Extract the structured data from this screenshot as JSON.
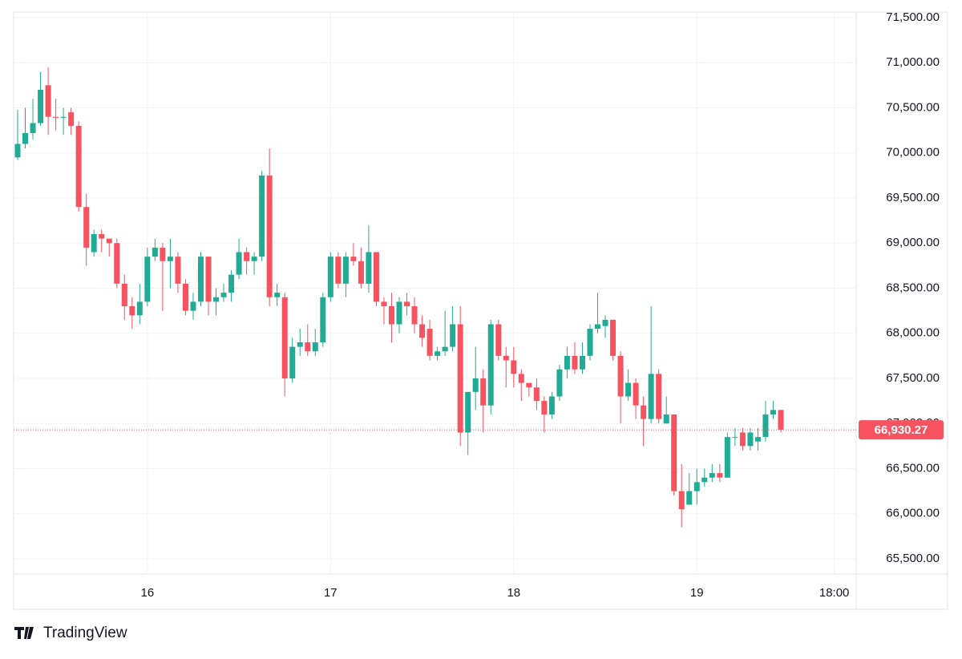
{
  "chart_data": {
    "type": "candlestick",
    "branding": "TradingView",
    "categories": [
      null,
      null,
      null,
      null,
      null,
      null,
      null,
      null,
      null,
      null,
      null,
      null,
      null,
      null,
      null,
      null,
      null,
      "16",
      null,
      null,
      null,
      null,
      null,
      null,
      null,
      null,
      null,
      null,
      null,
      null,
      null,
      null,
      null,
      null,
      null,
      null,
      null,
      null,
      null,
      null,
      null,
      "17",
      null,
      null,
      null,
      null,
      null,
      null,
      null,
      null,
      null,
      null,
      null,
      null,
      null,
      null,
      null,
      null,
      null,
      null,
      null,
      null,
      null,
      null,
      null,
      "18",
      null,
      null,
      null,
      null,
      null,
      null,
      null,
      null,
      null,
      null,
      null,
      null,
      null,
      null,
      null,
      null,
      null,
      null,
      null,
      null,
      null,
      null,
      null,
      "19",
      null,
      null,
      null,
      null,
      null,
      null,
      null,
      null,
      null,
      null,
      null,
      null,
      null,
      null,
      null,
      null,
      null,
      "18:00"
    ],
    "open": [
      69950,
      70100,
      70220,
      70330,
      70750,
      70400,
      70390,
      70450,
      70300,
      69400,
      68900,
      69100,
      69050,
      69000,
      68550,
      68300,
      68200,
      68350,
      68850,
      68950,
      68800,
      68850,
      68550,
      68250,
      68350,
      68850,
      68350,
      68400,
      68450,
      68650,
      68900,
      68800,
      68850,
      69750,
      68400,
      68400,
      67500,
      67850,
      67900,
      67800,
      67900,
      68400,
      68850,
      68550,
      68850,
      68800,
      68550,
      68900,
      68350,
      68300,
      68100,
      68350,
      68300,
      68100,
      68050,
      67750,
      67800,
      67850,
      68100,
      66900,
      67350,
      67500,
      67200,
      68100,
      67750,
      67700,
      67550,
      67450,
      67400,
      67250,
      67100,
      67300,
      67600,
      67750,
      67600,
      67750,
      68050,
      68080,
      68150,
      67750,
      67300,
      67450,
      67200,
      67050,
      67550,
      67000,
      67100,
      66250,
      66100,
      66250,
      66350,
      66400,
      66450,
      66400,
      66850,
      66900,
      66750,
      66800,
      66850,
      67100,
      67150,
      null,
      null,
      null,
      null,
      null,
      null,
      null
    ],
    "high": [
      70480,
      70500,
      70600,
      70900,
      70950,
      70600,
      70500,
      70500,
      70350,
      69550,
      69150,
      69150,
      69050,
      69050,
      68650,
      68400,
      68550,
      68950,
      69050,
      69000,
      69050,
      68900,
      68600,
      68450,
      68900,
      68850,
      68500,
      68550,
      68700,
      69050,
      68950,
      68900,
      69800,
      70050,
      68550,
      68450,
      67950,
      68050,
      68100,
      68050,
      68450,
      68900,
      68900,
      68900,
      69000,
      68950,
      69200,
      68900,
      68400,
      68450,
      68400,
      68450,
      68400,
      68200,
      68150,
      67850,
      68250,
      68300,
      68300,
      67350,
      67850,
      67600,
      68150,
      68150,
      67850,
      67850,
      67600,
      67450,
      67500,
      67300,
      67350,
      67650,
      67850,
      67900,
      67900,
      68100,
      68450,
      68200,
      68150,
      67800,
      67600,
      67500,
      67300,
      68300,
      67600,
      67300,
      67100,
      66550,
      66450,
      66500,
      66500,
      66550,
      66550,
      66900,
      66950,
      66950,
      66950,
      66950,
      67250,
      67250,
      67150,
      null,
      null,
      null,
      null,
      null,
      null,
      null
    ],
    "low": [
      69920,
      70050,
      70150,
      70300,
      70200,
      70250,
      70200,
      70200,
      69350,
      68750,
      68850,
      68900,
      68850,
      68500,
      68150,
      68050,
      68100,
      68300,
      68800,
      68250,
      68500,
      68450,
      68200,
      68150,
      68300,
      68200,
      68200,
      68350,
      68350,
      68600,
      68650,
      68650,
      68800,
      68300,
      68300,
      67300,
      67450,
      67750,
      67750,
      67750,
      67850,
      68350,
      68500,
      68400,
      68750,
      68500,
      68450,
      68300,
      68100,
      67900,
      68000,
      68200,
      68000,
      67850,
      67700,
      67700,
      67750,
      67800,
      66750,
      66650,
      67150,
      66900,
      67100,
      67700,
      67400,
      67400,
      67250,
      67300,
      67150,
      66900,
      67050,
      67250,
      67500,
      67550,
      67550,
      67700,
      68000,
      67950,
      67700,
      67000,
      67250,
      67050,
      66750,
      67000,
      67000,
      67000,
      66200,
      65850,
      66100,
      66100,
      66300,
      66350,
      66350,
      66400,
      66750,
      66700,
      66700,
      66700,
      66800,
      67050,
      66900,
      null,
      null,
      null,
      null,
      null,
      null,
      null
    ],
    "close": [
      70100,
      70220,
      70330,
      70700,
      70400,
      70390,
      70400,
      70300,
      69400,
      68950,
      69100,
      69050,
      69000,
      68550,
      68300,
      68200,
      68350,
      68850,
      68950,
      68800,
      68850,
      68550,
      68250,
      68350,
      68850,
      68350,
      68400,
      68450,
      68650,
      68900,
      68800,
      68850,
      69750,
      68400,
      68450,
      67500,
      67850,
      67900,
      67800,
      67900,
      68400,
      68850,
      68550,
      68850,
      68800,
      68550,
      68900,
      68350,
      68300,
      68100,
      68350,
      68300,
      68100,
      67950,
      67750,
      67800,
      67850,
      68100,
      66900,
      67350,
      67500,
      67200,
      68100,
      67750,
      67700,
      67550,
      67450,
      67400,
      67250,
      67100,
      67300,
      67600,
      67750,
      67600,
      67750,
      68050,
      68100,
      68150,
      67750,
      67300,
      67450,
      67200,
      67050,
      67550,
      67050,
      67100,
      66250,
      66050,
      66250,
      66350,
      66400,
      66450,
      66400,
      66850,
      66850,
      66750,
      66900,
      66850,
      67100,
      67150,
      66930.27,
      null,
      null,
      null,
      null,
      null,
      null,
      null
    ],
    "up_color": "#22ab94",
    "down_color": "#f7525f",
    "ylim": [
      65331,
      71562
    ],
    "yticks": [
      {
        "value": 65500,
        "label": "65,500.00"
      },
      {
        "value": 66000,
        "label": "66,000.00"
      },
      {
        "value": 66500,
        "label": "66,500.00"
      },
      {
        "value": 67000,
        "label": "67,000.00"
      },
      {
        "value": 67500,
        "label": "67,500.00"
      },
      {
        "value": 68000,
        "label": "68,000.00"
      },
      {
        "value": 68500,
        "label": "68,500.00"
      },
      {
        "value": 69000,
        "label": "69,000.00"
      },
      {
        "value": 69500,
        "label": "69,500.00"
      },
      {
        "value": 70000,
        "label": "70,000.00"
      },
      {
        "value": 70500,
        "label": "70,500.00"
      },
      {
        "value": 71000,
        "label": "71,000.00"
      },
      {
        "value": 71500,
        "label": "71,500.00"
      }
    ],
    "last_price": {
      "value": 66930.27,
      "label": "66,930.27"
    },
    "grid": true
  }
}
